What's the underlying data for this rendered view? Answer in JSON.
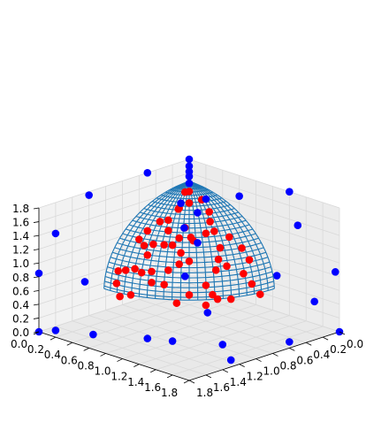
{
  "chart_data": {
    "type": "scatter3d",
    "title": "",
    "xlabel": "",
    "ylabel": "",
    "zlabel": "",
    "xlim": [
      0,
      1.8
    ],
    "ylim": [
      0,
      1.8
    ],
    "zlim": [
      0,
      1.8
    ],
    "x_ticks": [
      "0.0",
      "0.2",
      "0.4",
      "0.6",
      "0.8",
      "1.0",
      "1.2",
      "1.4",
      "1.6",
      "1.8"
    ],
    "y_ticks": [
      "0.0",
      "0.2",
      "0.4",
      "0.6",
      "0.8",
      "1.0",
      "1.2",
      "1.4",
      "1.6",
      "1.8"
    ],
    "z_ticks": [
      "0.0",
      "0.2",
      "0.4",
      "0.6",
      "0.8",
      "1.0",
      "1.2",
      "1.4",
      "1.6",
      "1.8"
    ],
    "grid": true,
    "colors": {
      "mesh": "#1f77b4",
      "inside": "#ff0000",
      "outside": "#0000ff",
      "pane": "#f2f2f2",
      "grid": "#d9d9d9"
    },
    "surface": {
      "type": "wireframe",
      "description": "spherical cap surface over the first octant",
      "radius": 1.0,
      "z_max": 1.8,
      "rings": 28,
      "meridians": 22
    },
    "series": [
      {
        "color": "#ff0000",
        "points": [
          [
            0.55,
            0.18,
            0.8
          ],
          [
            0.62,
            0.3,
            0.55
          ],
          [
            0.5,
            0.15,
            0.6
          ],
          [
            0.7,
            0.25,
            0.62
          ],
          [
            0.4,
            0.1,
            0.95
          ],
          [
            0.45,
            0.2,
            1.15
          ],
          [
            0.52,
            0.28,
            1.35
          ],
          [
            0.35,
            0.4,
            1.1
          ],
          [
            0.3,
            0.55,
            1.25
          ],
          [
            0.28,
            0.48,
            0.85
          ],
          [
            0.6,
            0.7,
            0.95
          ],
          [
            0.55,
            0.55,
            0.75
          ],
          [
            0.48,
            0.6,
            0.7
          ],
          [
            0.4,
            0.65,
            0.6
          ],
          [
            0.65,
            0.45,
            0.4
          ],
          [
            0.72,
            0.38,
            0.2
          ],
          [
            0.8,
            0.52,
            0.35
          ],
          [
            0.3,
            0.3,
            1.4
          ],
          [
            0.22,
            0.35,
            1.3
          ],
          [
            0.15,
            0.5,
            1.15
          ],
          [
            0.12,
            0.62,
            1.05
          ],
          [
            0.1,
            0.7,
            0.95
          ],
          [
            0.18,
            0.72,
            0.9
          ],
          [
            0.25,
            0.75,
            0.8
          ],
          [
            0.35,
            0.8,
            0.62
          ],
          [
            0.4,
            0.85,
            0.5
          ],
          [
            0.2,
            0.85,
            0.62
          ],
          [
            0.12,
            0.88,
            0.58
          ],
          [
            0.05,
            0.9,
            0.55
          ],
          [
            0.08,
            0.95,
            0.4
          ],
          [
            0.15,
            0.98,
            0.25
          ],
          [
            0.25,
            0.95,
            0.3
          ],
          [
            0.45,
            0.4,
            0.95
          ],
          [
            0.5,
            0.48,
            1.05
          ],
          [
            0.38,
            0.5,
            1.0
          ],
          [
            0.58,
            0.38,
            1.1
          ],
          [
            0.66,
            0.18,
            1.0
          ],
          [
            0.75,
            0.12,
            0.85
          ],
          [
            0.82,
            0.1,
            0.7
          ],
          [
            0.85,
            0.2,
            0.55
          ],
          [
            0.9,
            0.15,
            0.4
          ],
          [
            0.95,
            0.1,
            0.25
          ],
          [
            0.8,
            0.3,
            0.2
          ],
          [
            0.7,
            0.5,
            0.15
          ],
          [
            0.6,
            0.6,
            0.3
          ],
          [
            0.55,
            0.7,
            0.2
          ],
          [
            0.45,
            0.75,
            0.45
          ],
          [
            0.35,
            0.65,
            0.95
          ],
          [
            0.05,
            0.3,
            0.9
          ],
          [
            0.02,
            0.45,
            0.75
          ],
          [
            0.08,
            0.2,
            1.2
          ],
          [
            0.03,
            0.6,
            0.4
          ],
          [
            0.15,
            0.15,
            1.45
          ],
          [
            0.25,
            0.1,
            1.35
          ],
          [
            0.2,
            0.25,
            1.5
          ]
        ]
      },
      {
        "color": "#0000ff",
        "points": [
          [
            0.0,
            1.8,
            0.85
          ],
          [
            0.0,
            1.6,
            1.35
          ],
          [
            0.0,
            1.2,
            1.75
          ],
          [
            0.0,
            0.5,
            1.8
          ],
          [
            0.0,
            0.1,
            1.2
          ],
          [
            0.0,
            0.0,
            1.8
          ],
          [
            0.2,
            0.0,
            1.3
          ],
          [
            0.6,
            0.0,
            1.5
          ],
          [
            1.2,
            0.0,
            1.8
          ],
          [
            1.3,
            0.0,
            1.35
          ],
          [
            1.75,
            0.0,
            0.85
          ],
          [
            1.8,
            0.0,
            0.0
          ],
          [
            1.6,
            0.1,
            0.4
          ],
          [
            1.75,
            0.55,
            0.05
          ],
          [
            1.4,
            1.0,
            0.05
          ],
          [
            1.1,
            1.3,
            0.1
          ],
          [
            0.8,
            1.3,
            0.02
          ],
          [
            0.4,
            1.55,
            0.02
          ],
          [
            0.1,
            1.7,
            0.02
          ],
          [
            0.0,
            1.8,
            0.0
          ],
          [
            1.8,
            1.3,
            0.1
          ],
          [
            0.0,
            0.0,
            1.45
          ],
          [
            0.0,
            0.0,
            1.55
          ],
          [
            0.0,
            0.0,
            1.62
          ],
          [
            0.0,
            0.0,
            1.7
          ],
          [
            0.45,
            0.35,
            0.9
          ],
          [
            0.3,
            0.2,
            1.22
          ],
          [
            0.55,
            0.6,
            0.55
          ],
          [
            0.72,
            0.5,
            0.05
          ],
          [
            0.12,
            0.18,
            0.92
          ],
          [
            1.15,
            0.1,
            0.6
          ],
          [
            0.05,
            1.3,
            0.55
          ]
        ]
      }
    ]
  }
}
